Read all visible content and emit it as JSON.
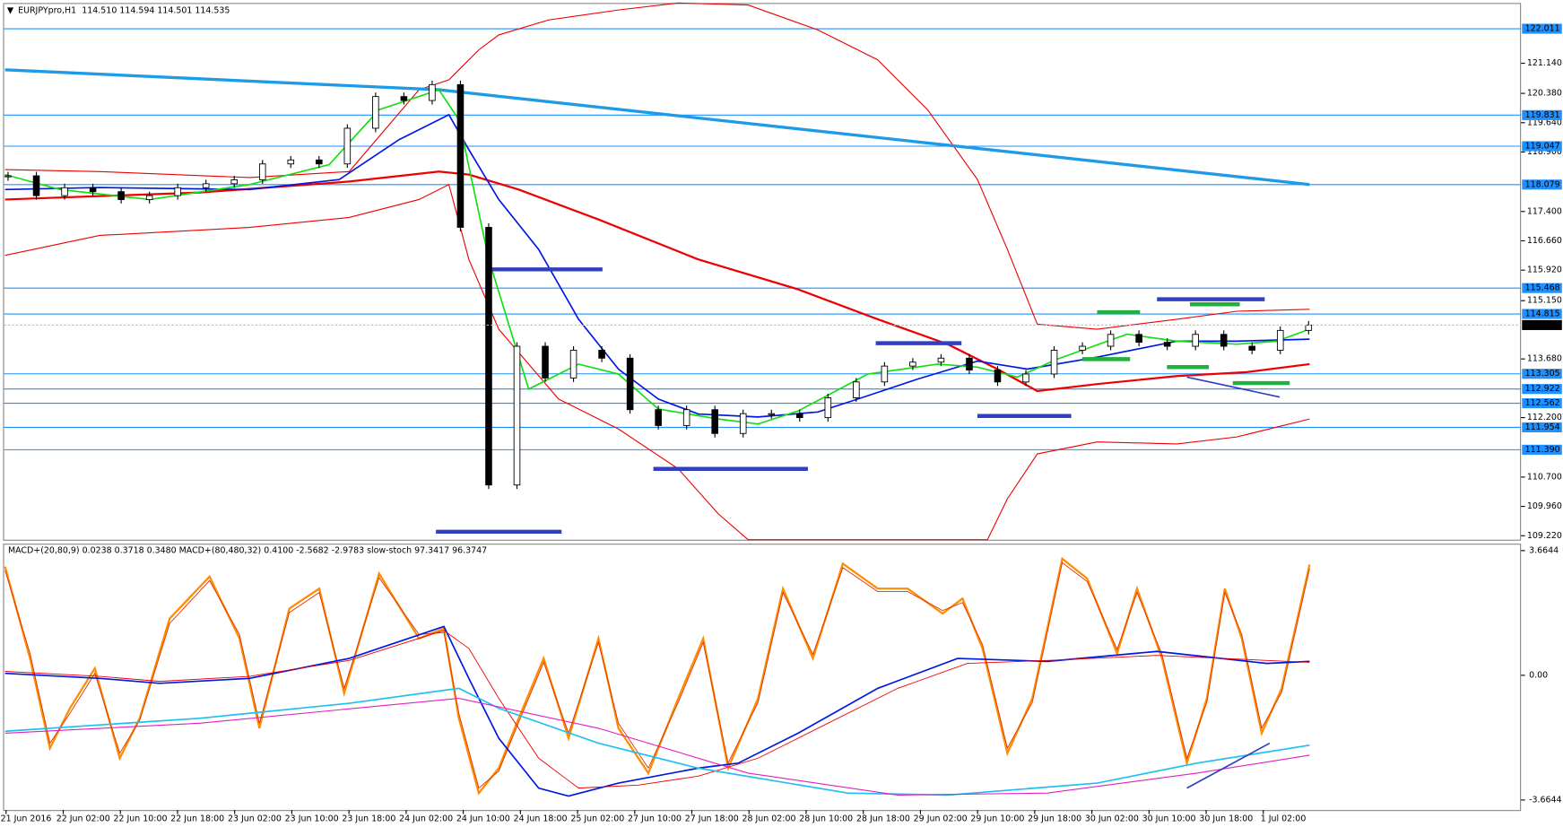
{
  "header": {
    "symbol": "EURJPYpro,H1",
    "ohlc": "114.510 114.594 114.501 114.535"
  },
  "chart": {
    "type": "candlestick",
    "ylim": [
      109.12,
      122.66
    ],
    "yticks": [
      {
        "value": 121.14,
        "label": "121.140"
      },
      {
        "value": 120.38,
        "label": "120.380"
      },
      {
        "value": 119.64,
        "label": "119.640"
      },
      {
        "value": 118.9,
        "label": "118.900"
      },
      {
        "value": 117.4,
        "label": "117.400"
      },
      {
        "value": 116.66,
        "label": "116.660"
      },
      {
        "value": 115.92,
        "label": "115.920"
      },
      {
        "value": 115.15,
        "label": "115.150"
      },
      {
        "value": 113.68,
        "label": "113.680"
      },
      {
        "value": 112.2,
        "label": "112.200"
      },
      {
        "value": 110.7,
        "label": "110.700"
      },
      {
        "value": 109.96,
        "label": "109.960"
      },
      {
        "value": 109.22,
        "label": "109.220"
      }
    ],
    "levels": [
      122.011,
      119.831,
      119.047,
      118.079,
      115.468,
      114.815,
      113.305,
      112.922,
      112.562,
      111.954,
      {
        "value": 111.39,
        "label": "111.390"
      }
    ],
    "current_price": 114.535,
    "closes": [
      118.3,
      117.8,
      118.0,
      117.9,
      117.7,
      117.8,
      118.0,
      118.1,
      118.2,
      118.6,
      118.7,
      118.6,
      119.5,
      120.3,
      120.2,
      120.6,
      117.0,
      110.5,
      114.0,
      113.2,
      113.9,
      113.7,
      112.4,
      112.0,
      112.4,
      111.8,
      112.3,
      112.3,
      112.2,
      112.7,
      113.1,
      113.5,
      113.6,
      113.7,
      113.4,
      113.1,
      113.3,
      113.9,
      114.0,
      114.3,
      114.1,
      114.0,
      114.3,
      114.0,
      113.9,
      114.4,
      114.535
    ],
    "x_labels": [
      "21 Jun 2016",
      "22 Jun 02:00",
      "22 Jun 10:00",
      "22 Jun 18:00",
      "23 Jun 02:00",
      "23 Jun 10:00",
      "23 Jun 18:00",
      "24 Jun 02:00",
      "24 Jun 10:00",
      "24 Jun 18:00",
      "25 Jun 02:00",
      "27 Jun 10:00",
      "27 Jun 18:00",
      "28 Jun 02:00",
      "28 Jun 10:00",
      "28 Jun 18:00",
      "29 Jun 02:00",
      "29 Jun 10:00",
      "29 Jun 18:00",
      "30 Jun 02:00",
      "30 Jun 10:00",
      "30 Jun 18:00",
      "1 Jul 02:00"
    ]
  },
  "indicator": {
    "label": "MACD+(20,80,9) 0.0238 0.3718 0.3480  MACD+(80,480,32) 0.4100 -2.5682 -2.9783  slow-stoch 97.3417 96.3747",
    "ylim": [
      -3.96,
      3.78
    ],
    "yticks": [
      3.6644,
      {
        "value": 0,
        "label": "0.00"
      },
      -3.6644
    ]
  }
}
